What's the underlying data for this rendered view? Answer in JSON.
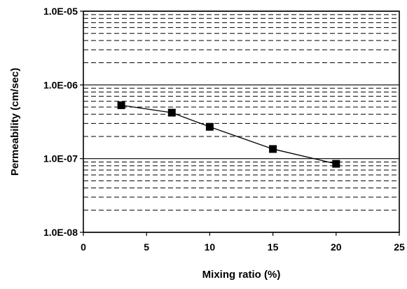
{
  "chart_data": {
    "type": "line",
    "title": "",
    "xlabel": "Mixing ratio (%)",
    "ylabel": "Permeability (cm/sec)",
    "x_scale": "linear",
    "y_scale": "log",
    "xlim": [
      0,
      25
    ],
    "ylim": [
      1e-08,
      1e-05
    ],
    "x_ticks": [
      0,
      5,
      10,
      15,
      20,
      25
    ],
    "x_tick_labels": [
      "0",
      "5",
      "10",
      "15",
      "20",
      "25"
    ],
    "y_ticks": [
      1e-08,
      1e-07,
      1e-06,
      1e-05
    ],
    "y_tick_labels": [
      "1.0E-08",
      "1.0E-07",
      "1.0E-06",
      "1.0E-05"
    ],
    "grid": {
      "major": true,
      "minor": true,
      "major_style": "solid",
      "minor_style": "dashed"
    },
    "legend": "none",
    "series": [
      {
        "marker": "square",
        "color": "#000000",
        "x": [
          3,
          7,
          10,
          15,
          20
        ],
        "y": [
          5.3e-07,
          4.2e-07,
          2.7e-07,
          1.35e-07,
          8.5e-08
        ]
      }
    ]
  }
}
